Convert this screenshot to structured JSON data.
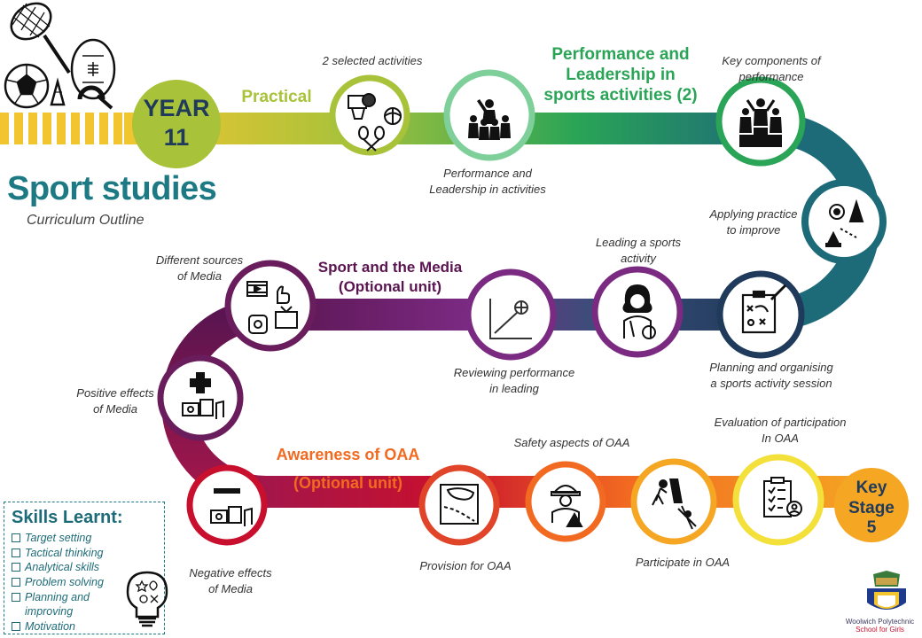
{
  "title": "Sport studies",
  "subtitle": "Curriculum Outline",
  "start_badge": {
    "line1": "YEAR",
    "line2": "11",
    "color": "#a8c23a"
  },
  "end_badge": {
    "line1": "Key",
    "line2": "Stage",
    "line3": "5",
    "color": "#f5a623"
  },
  "units": {
    "practical": "Practical",
    "performance": "Performance and\nLeadership in\nsports activities (2)",
    "media": "Sport and the Media\n(Optional unit)",
    "oaa_line1": "Awareness of OAA",
    "oaa_line2": "(Optional unit)"
  },
  "steps": [
    {
      "label": "2 selected activities",
      "icon": "sports-equipment-icon"
    },
    {
      "label": "Performance and\nLeadership in activities",
      "icon": "leader-group-icon"
    },
    {
      "label": "Key components of\nperformance",
      "icon": "podium-icon"
    },
    {
      "label": "Applying practice\nto improve",
      "icon": "drill-cones-icon"
    },
    {
      "label": "Planning and organising\na sports activity  session",
      "icon": "tactics-board-icon"
    },
    {
      "label": "Leading a sports\nactivity",
      "icon": "coach-icon"
    },
    {
      "label": "Reviewing performance\nin leading",
      "icon": "performance-graph-icon"
    },
    {
      "label": "Different sources\nof Media",
      "icon": "media-sources-icon"
    },
    {
      "label": "Positive effects\nof Media",
      "icon": "positive-media-icon"
    },
    {
      "label": "Negative effects\nof Media",
      "icon": "negative-media-icon"
    },
    {
      "label": "Provision for OAA",
      "icon": "trail-map-icon"
    },
    {
      "label": "Safety aspects of OAA",
      "icon": "safety-helmet-icon"
    },
    {
      "label": "Participate in OAA",
      "icon": "climbing-kayak-icon"
    },
    {
      "label": "Evaluation of participation\nIn OAA",
      "icon": "evaluation-clipboard-icon"
    }
  ],
  "skills": {
    "title": "Skills Learnt:",
    "items": [
      "Target setting",
      "Tactical thinking",
      "Analytical skills",
      "Problem solving",
      "Planning and improving",
      "Motivation"
    ]
  },
  "school": {
    "line1": "Woolwich Polytechnic",
    "line2": "School for Girls"
  },
  "colors": {
    "yellow": "#f2c530",
    "lime": "#a8c23a",
    "green": "#2aa456",
    "teal": "#1d6b78",
    "navy": "#1f3a5a",
    "purple": "#7b2a82",
    "plum": "#6a1d5c",
    "red": "#c8102e",
    "orange": "#f26a21",
    "amber": "#f5a623"
  }
}
